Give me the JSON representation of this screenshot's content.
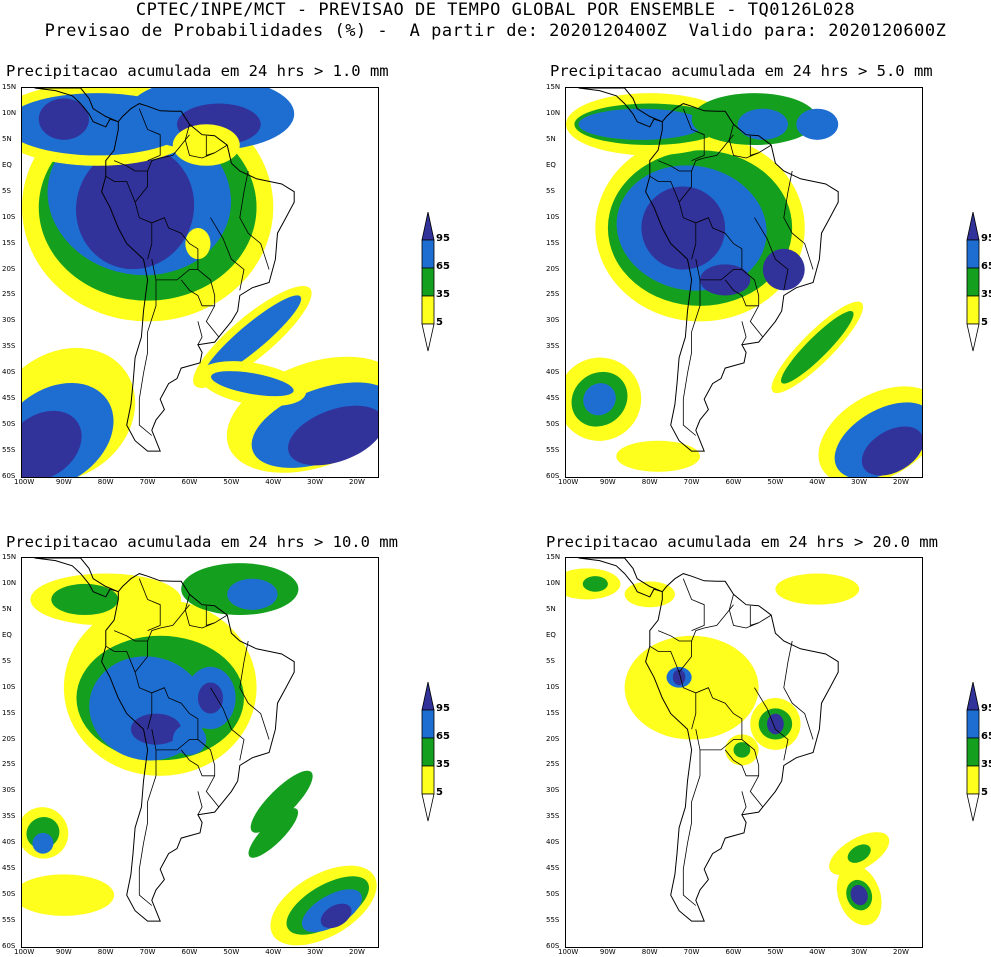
{
  "header": {
    "line1": "CPTEC/INPE/MCT - PREVISAO DE TEMPO GLOBAL POR ENSEMBLE - TQ0126L028",
    "line2": "Previsao de Probabilidades (%) -  A partir de: 2020120400Z  Valido para: 2020120600Z"
  },
  "colors": {
    "yellow": "#ffff1e",
    "green": "#14a01e",
    "blue": "#1e6ed2",
    "navy": "#32329b"
  },
  "colorbar": {
    "labels": [
      "95",
      "65",
      "35",
      "5"
    ]
  },
  "axes": {
    "lat_labels": [
      "15N",
      "10N",
      "5N",
      "EQ",
      "5S",
      "10S",
      "15S",
      "20S",
      "25S",
      "30S",
      "35S",
      "40S",
      "45S",
      "50S",
      "55S",
      "60S"
    ],
    "lon_labels": [
      "100W",
      "90W",
      "80W",
      "70W",
      "60W",
      "50W",
      "40W",
      "30W",
      "20W"
    ]
  },
  "panels": [
    {
      "title": "Precipitacao acumulada em 24 hrs > 1.0 mm",
      "threshold": "1.0 mm"
    },
    {
      "title": "Precipitacao acumulada em 24 hrs > 5.0 mm",
      "threshold": "5.0 mm"
    },
    {
      "title": "Precipitacao acumulada em 24 hrs > 10.0 mm",
      "threshold": "10.0 mm"
    },
    {
      "title": "Precipitacao acumulada em 24 hrs > 20.0 mm",
      "threshold": "20.0 mm"
    }
  ]
}
